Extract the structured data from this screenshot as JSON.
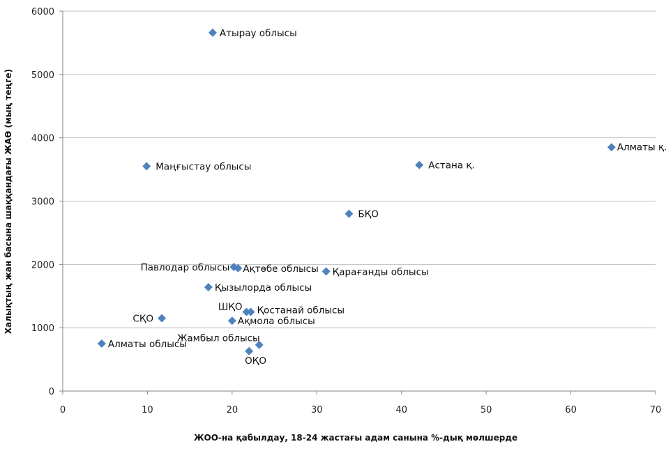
{
  "chart_data": {
    "type": "scatter",
    "title": "",
    "xlabel": "ЖОО-на қабылдау, 18-24 жастағы адам санына %-дық мөлшерде",
    "ylabel": "Халықтың жан басына шаққандағы ЖАӨ (мың теңге)",
    "xlim": [
      0,
      70
    ],
    "ylim": [
      0,
      6000
    ],
    "x_ticks": [
      0,
      10,
      20,
      30,
      40,
      50,
      60,
      70
    ],
    "y_ticks": [
      0,
      1000,
      2000,
      3000,
      4000,
      5000,
      6000
    ],
    "grid": "horizontal",
    "legend": "none",
    "marker": "diamond",
    "colors": {
      "marker": "#4f81bd",
      "grid": "#bfbfbf",
      "axis": "#868686"
    },
    "points": [
      {
        "label": "Атырау облысы",
        "x": 17.7,
        "y": 5660
      },
      {
        "label": "Алматы қ.",
        "x": 64.8,
        "y": 3850
      },
      {
        "label": "Маңғыстау облысы",
        "x": 9.9,
        "y": 3550
      },
      {
        "label": "Астана қ.",
        "x": 42.1,
        "y": 3570
      },
      {
        "label": "БҚО",
        "x": 33.8,
        "y": 2800
      },
      {
        "label": "Павлодар облысы",
        "x": 20.2,
        "y": 1960
      },
      {
        "label": "Ақтөбе облысы",
        "x": 20.7,
        "y": 1940
      },
      {
        "label": "Қарағанды облысы",
        "x": 31.1,
        "y": 1890
      },
      {
        "label": "Қызылорда облысы",
        "x": 17.2,
        "y": 1640
      },
      {
        "label": "ШҚО",
        "x": 21.7,
        "y": 1250
      },
      {
        "label": "Қостанай облысы",
        "x": 22.2,
        "y": 1250
      },
      {
        "label": "СҚО",
        "x": 11.7,
        "y": 1150
      },
      {
        "label": "Ақмола облысы",
        "x": 20.0,
        "y": 1110
      },
      {
        "label": "Жамбыл облысы",
        "x": 23.2,
        "y": 730
      },
      {
        "label": "Алматы облысы",
        "x": 4.6,
        "y": 750
      },
      {
        "label": "ОҚО",
        "x": 22.0,
        "y": 630
      }
    ]
  }
}
